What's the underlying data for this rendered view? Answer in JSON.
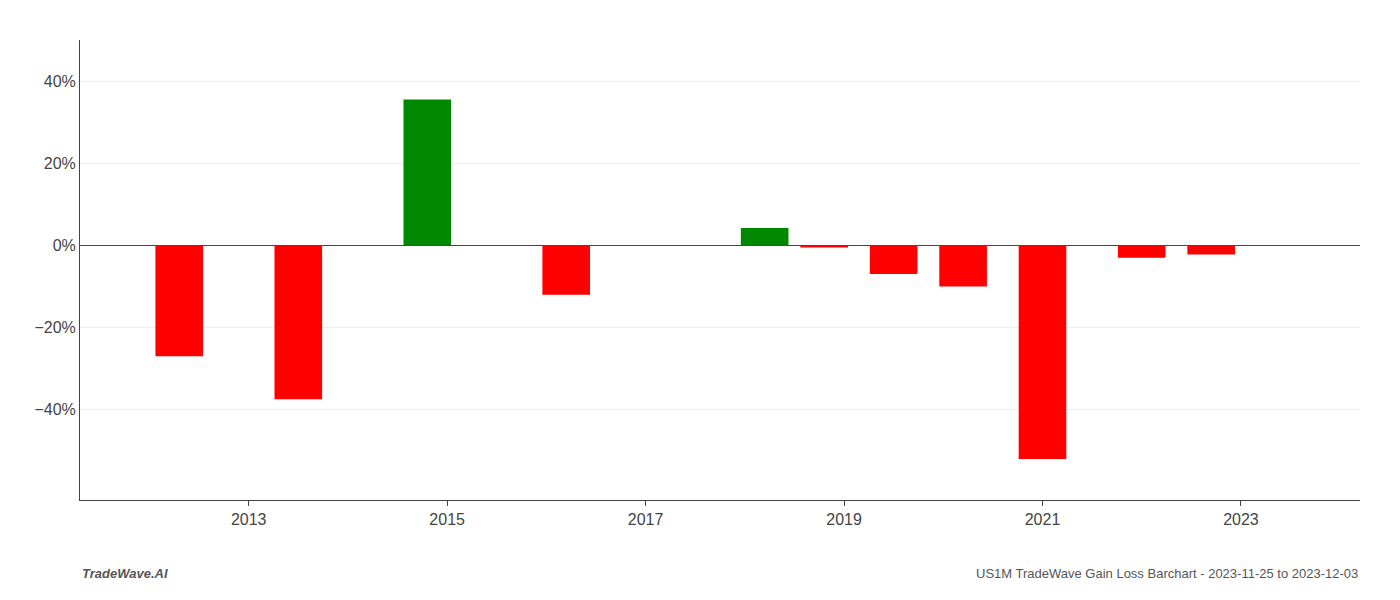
{
  "chart_data": {
    "type": "bar",
    "x": [
      2012.3,
      2013.5,
      2014.8,
      2016.2,
      2018.2,
      2018.8,
      2019.5,
      2020.2,
      2021.0,
      2022.0,
      2022.7
    ],
    "values": [
      -0.27,
      -0.375,
      0.355,
      -0.12,
      0.042,
      -0.005,
      -0.07,
      -0.1,
      -0.52,
      -0.03,
      -0.022
    ],
    "colors": [
      "#ff0000",
      "#ff0000",
      "#008800",
      "#ff0000",
      "#008800",
      "#ff0000",
      "#ff0000",
      "#ff0000",
      "#ff0000",
      "#ff0000",
      "#ff0000"
    ],
    "xlim": [
      2011.3,
      2024.2
    ],
    "xticks": [
      2013,
      2015,
      2017,
      2019,
      2021,
      2023
    ],
    "ylim": [
      -0.62,
      0.5
    ],
    "yticks": [
      {
        "value": -0.4,
        "label": "−40%"
      },
      {
        "value": -0.2,
        "label": "−20%"
      },
      {
        "value": 0.0,
        "label": "0%"
      },
      {
        "value": 0.2,
        "label": "20%"
      },
      {
        "value": 0.4,
        "label": "40%"
      }
    ],
    "grid": true,
    "annotations": [
      "TradeWave.AI",
      "US1M TradeWave Gain Loss Barchart - 2023-11-25 to 2023-12-03"
    ]
  }
}
